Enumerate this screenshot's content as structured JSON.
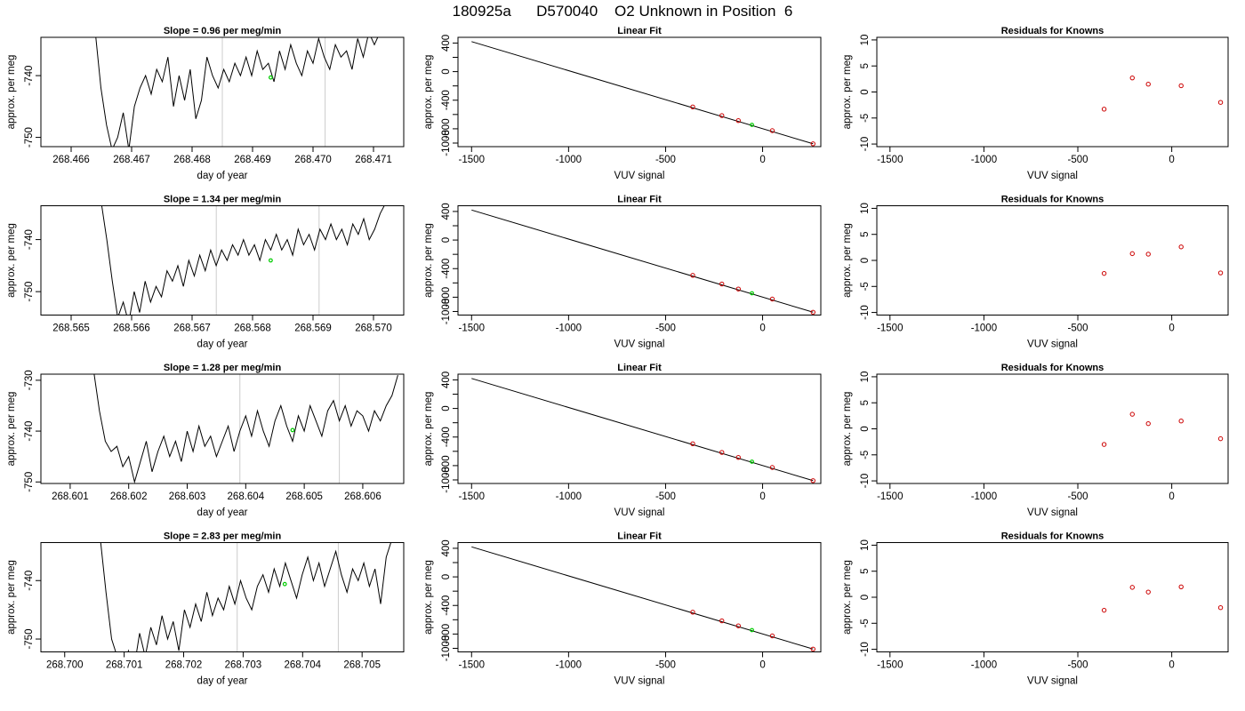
{
  "page_title": "180925a      D570040    O2 Unknown in Position  6",
  "axis_labels": {
    "time_x": "day of year",
    "time_y": "approx. per meg",
    "fit_x": "VUV signal",
    "fit_y": "approx. per meg",
    "resid_x": "VUV signal",
    "resid_y": "approx. per meg"
  },
  "panel_titles": {
    "fit": "Linear Fit",
    "residuals": "Residuals for Knowns"
  },
  "colors": {
    "trace": "#000000",
    "reference_line": "#cccccc",
    "known_points": "#cc0000",
    "unknown_point": "#00cc00"
  },
  "chart_data": [
    {
      "type": "line",
      "row": 1,
      "title": "Slope =  0.96  per meg/min",
      "xlabel": "day of year",
      "ylabel": "approx. per meg",
      "xlim": [
        268.4655,
        268.4715
      ],
      "ylim": [
        -751.5,
        -733.8
      ],
      "xticks": [
        268.466,
        268.467,
        268.468,
        268.469,
        268.47,
        268.471
      ],
      "xtick_labels": [
        "268.466",
        "268.467",
        "268.468",
        "268.469",
        "268.470",
        "268.471"
      ],
      "yticks": [
        -740,
        -750
      ],
      "ytick_labels": [
        "-740",
        "-750"
      ],
      "vlines": [
        268.4685,
        268.4702
      ],
      "series_x_start": 268.4664,
      "series_x_end": 268.4712,
      "trace": [
        -733,
        -742,
        -748,
        -752,
        -750,
        -746,
        -752,
        -745,
        -742,
        -740,
        -743,
        -739,
        -741,
        -737,
        -745,
        -740,
        -744,
        -739,
        -747,
        -744,
        -737,
        -740,
        -742,
        -739,
        -741,
        -738,
        -740,
        -737,
        -740,
        -736,
        -739,
        -738,
        -741,
        -736,
        -739,
        -735,
        -738,
        -740,
        -736,
        -738,
        -734,
        -737,
        -739,
        -735,
        -737,
        -736,
        -739,
        -734,
        -737,
        -733,
        -735,
        -733,
        -731
      ],
      "unknown_point": {
        "x": 268.4693,
        "y": -740.3
      }
    },
    {
      "type": "scatter",
      "row": 1,
      "title": "Linear Fit",
      "xlabel": "VUV signal",
      "ylabel": "approx. per meg",
      "xlim": [
        -1570,
        300
      ],
      "ylim": [
        -1050,
        480
      ],
      "xticks": [
        -1500,
        -1000,
        -500,
        0
      ],
      "yticks": [
        400,
        200,
        0,
        -200,
        -400,
        -600,
        -800,
        -1000
      ],
      "ytick_labels": [
        "400",
        "",
        "0",
        "",
        "-400",
        "",
        "-800",
        "-1000"
      ],
      "fit_line": {
        "x": [
          -1500,
          260
        ],
        "y": [
          420,
          -1010
        ]
      },
      "knowns": {
        "x": [
          -360,
          -210,
          -125,
          50,
          260
        ],
        "y": [
          -494,
          -615,
          -685,
          -826,
          -1010
        ]
      },
      "unknown": {
        "x": -55,
        "y": -745
      }
    },
    {
      "type": "scatter",
      "row": 1,
      "title": "Residuals for Knowns",
      "xlabel": "VUV signal",
      "ylabel": "approx. per meg",
      "xlim": [
        -1570,
        300
      ],
      "ylim": [
        -10.5,
        10.5
      ],
      "xticks": [
        -1500,
        -1000,
        -500,
        0
      ],
      "yticks": [
        10,
        5,
        0,
        -5,
        -10
      ],
      "knowns": {
        "x": [
          -360,
          -210,
          -125,
          50,
          260
        ],
        "y": [
          -3.3,
          2.7,
          1.5,
          1.2,
          -2.0
        ]
      }
    },
    {
      "type": "line",
      "row": 2,
      "title": "Slope =  1.34  per meg/min",
      "xlabel": "day of year",
      "ylabel": "approx. per meg",
      "xlim": [
        268.5645,
        268.5705
      ],
      "ylim": [
        -754.5,
        -733.5
      ],
      "xticks": [
        268.565,
        268.566,
        268.567,
        268.568,
        268.569,
        268.57
      ],
      "xtick_labels": [
        "268.565",
        "268.566",
        "268.567",
        "268.568",
        "268.569",
        "268.570"
      ],
      "yticks": [
        -740,
        -750
      ],
      "ytick_labels": [
        "-740",
        "-750"
      ],
      "vlines": [
        268.5674,
        268.5691
      ],
      "series_x_start": 268.5655,
      "series_x_end": 268.5702,
      "trace": [
        -733,
        -740,
        -748,
        -755,
        -752,
        -756,
        -750,
        -754,
        -748,
        -752,
        -749,
        -751,
        -746,
        -748,
        -745,
        -749,
        -744,
        -747,
        -743,
        -746,
        -742,
        -745,
        -742,
        -744,
        -741,
        -743,
        -740,
        -743,
        -741,
        -744,
        -740,
        -742,
        -739,
        -742,
        -740,
        -743,
        -738,
        -741,
        -739,
        -742,
        -738,
        -740,
        -737,
        -740,
        -738,
        -741,
        -737,
        -739,
        -736,
        -740,
        -738,
        -735,
        -733
      ],
      "unknown_point": {
        "x": 268.5683,
        "y": -744.0
      }
    },
    {
      "type": "scatter",
      "row": 2,
      "title": "Linear Fit",
      "xlabel": "VUV signal",
      "ylabel": "approx. per meg",
      "xlim": [
        -1570,
        300
      ],
      "ylim": [
        -1050,
        480
      ],
      "xticks": [
        -1500,
        -1000,
        -500,
        0
      ],
      "yticks": [
        400,
        200,
        0,
        -200,
        -400,
        -600,
        -800,
        -1000
      ],
      "ytick_labels": [
        "400",
        "",
        "0",
        "",
        "-400",
        "",
        "-800",
        "-1000"
      ],
      "fit_line": {
        "x": [
          -1500,
          260
        ],
        "y": [
          420,
          -1010
        ]
      },
      "knowns": {
        "x": [
          -360,
          -210,
          -125,
          50,
          260
        ],
        "y": [
          -494,
          -615,
          -685,
          -826,
          -1010
        ]
      },
      "unknown": {
        "x": -55,
        "y": -745
      }
    },
    {
      "type": "scatter",
      "row": 2,
      "title": "Residuals for Knowns",
      "xlabel": "VUV signal",
      "ylabel": "approx. per meg",
      "xlim": [
        -1570,
        300
      ],
      "ylim": [
        -10.5,
        10.5
      ],
      "xticks": [
        -1500,
        -1000,
        -500,
        0
      ],
      "yticks": [
        10,
        5,
        0,
        -5,
        -10
      ],
      "knowns": {
        "x": [
          -360,
          -210,
          -125,
          50,
          260
        ],
        "y": [
          -2.5,
          1.3,
          1.2,
          2.6,
          -2.4
        ]
      }
    },
    {
      "type": "line",
      "row": 3,
      "title": "Slope =  1.28  per meg/min",
      "xlabel": "day of year",
      "ylabel": "approx. per meg",
      "xlim": [
        268.6005,
        268.6067
      ],
      "ylim": [
        -750.3,
        -728.8
      ],
      "xticks": [
        268.601,
        268.602,
        268.603,
        268.604,
        268.605,
        268.606
      ],
      "xtick_labels": [
        "268.601",
        "268.602",
        "268.603",
        "268.604",
        "268.605",
        "268.606"
      ],
      "yticks": [
        -730,
        -740,
        -750
      ],
      "ytick_labels": [
        "-730",
        "-740",
        "-750"
      ],
      "vlines": [
        268.6039,
        268.6056
      ],
      "series_x_start": 268.6014,
      "series_x_end": 268.6066,
      "trace": [
        -728,
        -736,
        -742,
        -744,
        -743,
        -747,
        -745,
        -750,
        -746,
        -742,
        -748,
        -744,
        -741,
        -745,
        -742,
        -746,
        -740,
        -744,
        -739,
        -743,
        -741,
        -745,
        -742,
        -739,
        -744,
        -740,
        -737,
        -741,
        -736,
        -740,
        -743,
        -738,
        -735,
        -739,
        -742,
        -737,
        -740,
        -735,
        -738,
        -741,
        -736,
        -734,
        -738,
        -735,
        -739,
        -736,
        -737,
        -740,
        -736,
        -738,
        -735,
        -733,
        -729
      ],
      "unknown_point": {
        "x": 268.6048,
        "y": -739.8
      }
    },
    {
      "type": "scatter",
      "row": 3,
      "title": "Linear Fit",
      "xlabel": "VUV signal",
      "ylabel": "approx. per meg",
      "xlim": [
        -1570,
        300
      ],
      "ylim": [
        -1050,
        480
      ],
      "xticks": [
        -1500,
        -1000,
        -500,
        0
      ],
      "yticks": [
        400,
        200,
        0,
        -200,
        -400,
        -600,
        -800,
        -1000
      ],
      "ytick_labels": [
        "400",
        "",
        "0",
        "",
        "-400",
        "",
        "-800",
        "-1000"
      ],
      "fit_line": {
        "x": [
          -1500,
          260
        ],
        "y": [
          420,
          -1010
        ]
      },
      "knowns": {
        "x": [
          -360,
          -210,
          -125,
          50,
          260
        ],
        "y": [
          -494,
          -615,
          -685,
          -826,
          -1010
        ]
      },
      "unknown": {
        "x": -55,
        "y": -745
      }
    },
    {
      "type": "scatter",
      "row": 3,
      "title": "Residuals for Knowns",
      "xlabel": "VUV signal",
      "ylabel": "approx. per meg",
      "xlim": [
        -1570,
        300
      ],
      "ylim": [
        -10.5,
        10.5
      ],
      "xticks": [
        -1500,
        -1000,
        -500,
        0
      ],
      "yticks": [
        10,
        5,
        0,
        -5,
        -10
      ],
      "knowns": {
        "x": [
          -360,
          -210,
          -125,
          50,
          260
        ],
        "y": [
          -3.0,
          2.8,
          1.0,
          1.5,
          -1.9
        ]
      }
    },
    {
      "type": "line",
      "row": 4,
      "title": "Slope =  2.83  per meg/min",
      "xlabel": "day of year",
      "ylabel": "approx. per meg",
      "xlim": [
        268.6996,
        268.7057
      ],
      "ylim": [
        -752.2,
        -733.5
      ],
      "xticks": [
        268.7,
        268.701,
        268.702,
        268.703,
        268.704,
        268.705
      ],
      "xtick_labels": [
        "268.700",
        "268.701",
        "268.702",
        "268.703",
        "268.704",
        "268.705"
      ],
      "yticks": [
        -740,
        -750
      ],
      "ytick_labels": [
        "-740",
        "-750"
      ],
      "vlines": [
        268.7029,
        268.7046
      ],
      "series_x_start": 268.7006,
      "series_x_end": 268.7055,
      "trace": [
        -733,
        -742,
        -750,
        -753,
        -756,
        -752,
        -755,
        -749,
        -753,
        -748,
        -751,
        -746,
        -750,
        -747,
        -752,
        -745,
        -748,
        -744,
        -747,
        -742,
        -746,
        -743,
        -745,
        -741,
        -744,
        -740,
        -743,
        -745,
        -741,
        -739,
        -742,
        -738,
        -741,
        -737,
        -740,
        -743,
        -739,
        -736,
        -740,
        -737,
        -741,
        -738,
        -735,
        -739,
        -742,
        -738,
        -740,
        -737,
        -741,
        -738,
        -744,
        -736,
        -733
      ],
      "unknown_point": {
        "x": 268.7037,
        "y": -740.6
      }
    },
    {
      "type": "scatter",
      "row": 4,
      "title": "Linear Fit",
      "xlabel": "VUV signal",
      "ylabel": "approx. per meg",
      "xlim": [
        -1570,
        300
      ],
      "ylim": [
        -1050,
        480
      ],
      "xticks": [
        -1500,
        -1000,
        -500,
        0
      ],
      "yticks": [
        400,
        200,
        0,
        -200,
        -400,
        -600,
        -800,
        -1000
      ],
      "ytick_labels": [
        "400",
        "",
        "0",
        "",
        "-400",
        "",
        "-800",
        "-1000"
      ],
      "fit_line": {
        "x": [
          -1500,
          260
        ],
        "y": [
          420,
          -1010
        ]
      },
      "knowns": {
        "x": [
          -360,
          -210,
          -125,
          50,
          260
        ],
        "y": [
          -494,
          -615,
          -685,
          -826,
          -1010
        ]
      },
      "unknown": {
        "x": -55,
        "y": -745
      }
    },
    {
      "type": "scatter",
      "row": 4,
      "title": "Residuals for Knowns",
      "xlabel": "VUV signal",
      "ylabel": "approx. per meg",
      "xlim": [
        -1570,
        300
      ],
      "ylim": [
        -10.5,
        10.5
      ],
      "xticks": [
        -1500,
        -1000,
        -500,
        0
      ],
      "yticks": [
        10,
        5,
        0,
        -5,
        -10
      ],
      "knowns": {
        "x": [
          -360,
          -210,
          -125,
          50,
          260
        ],
        "y": [
          -2.5,
          1.9,
          1.0,
          2.0,
          -2.0
        ]
      }
    }
  ]
}
